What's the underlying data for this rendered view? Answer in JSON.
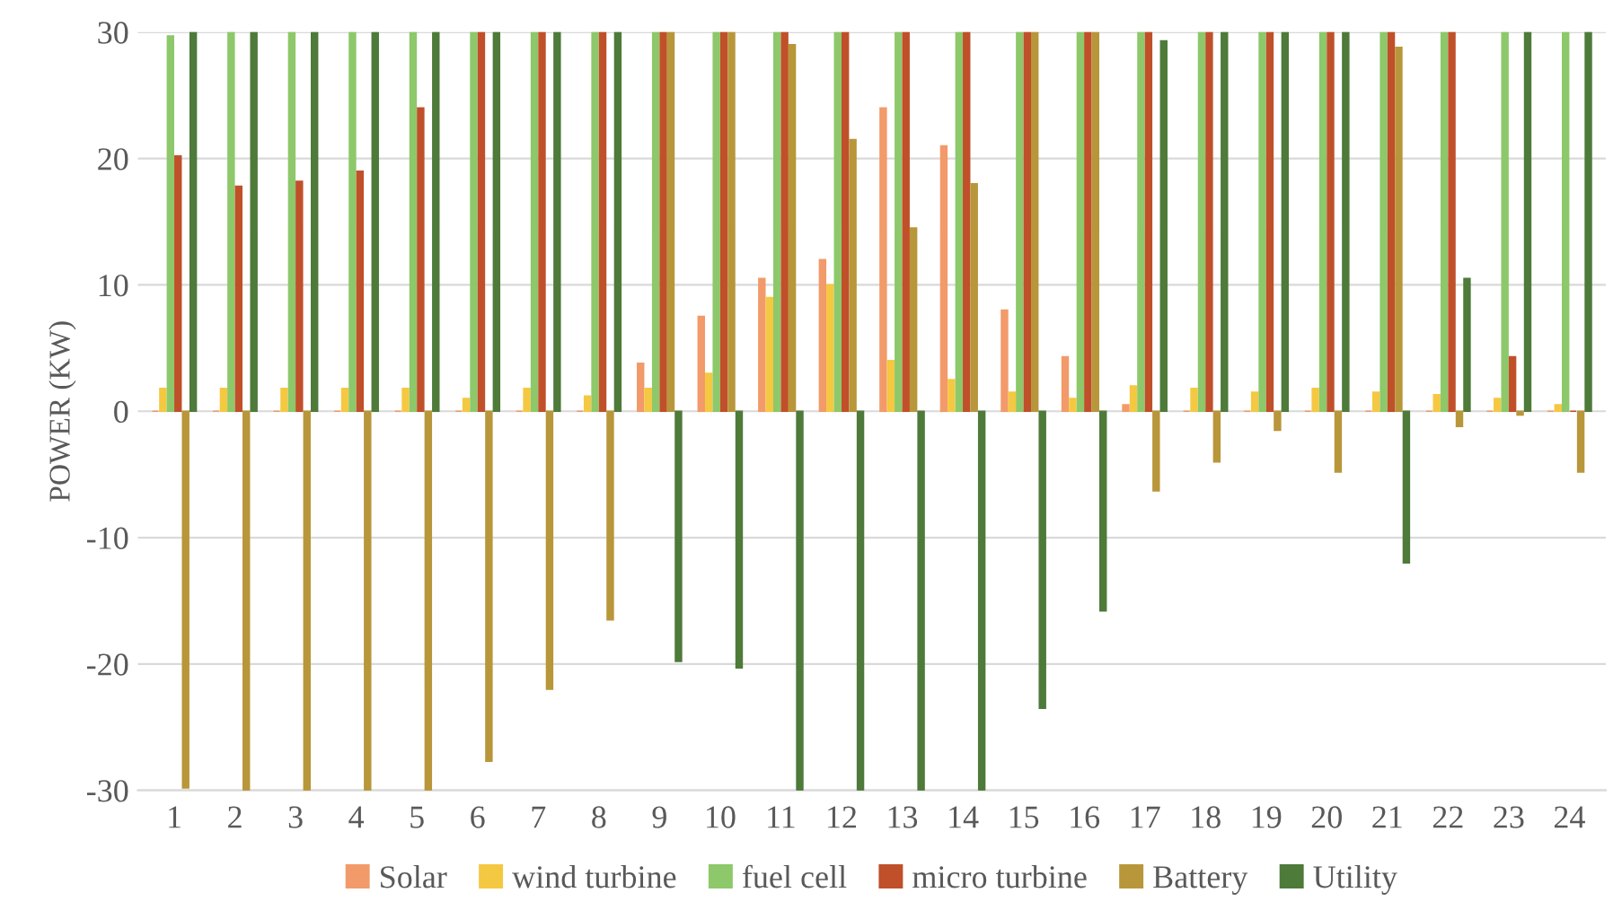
{
  "chart_data": {
    "type": "bar",
    "ylabel": "POWER (KW)",
    "categories": [
      "1",
      "2",
      "3",
      "4",
      "5",
      "6",
      "7",
      "8",
      "9",
      "10",
      "11",
      "12",
      "13",
      "14",
      "15",
      "16",
      "17",
      "18",
      "19",
      "20",
      "21",
      "22",
      "23",
      "24"
    ],
    "series": [
      {
        "name": "Solar",
        "color": "#f29a6a",
        "values": [
          0,
          0,
          0,
          0,
          0,
          0,
          0,
          0,
          3.8,
          7.5,
          10.5,
          12,
          24,
          21,
          8,
          4.3,
          0.5,
          0,
          0,
          0,
          0,
          0,
          0,
          0
        ]
      },
      {
        "name": "wind turbine",
        "color": "#f5c842",
        "values": [
          1.8,
          1.8,
          1.8,
          1.8,
          1.8,
          1,
          1.8,
          1.2,
          1.8,
          3,
          9,
          10,
          4,
          2.5,
          1.5,
          1,
          2,
          1.8,
          1.5,
          1.8,
          1.5,
          1.3,
          1,
          0.5
        ]
      },
      {
        "name": "fuel cell",
        "color": "#8dc86a",
        "values": [
          29.7,
          30,
          30,
          30,
          30,
          30,
          30,
          30,
          30,
          30,
          30,
          30,
          30,
          30,
          30,
          30,
          30,
          30,
          30,
          30,
          30,
          30,
          30,
          30
        ]
      },
      {
        "name": "micro turbine",
        "color": "#c0502a",
        "values": [
          20.2,
          17.8,
          18.2,
          19,
          24,
          30,
          30,
          30,
          30,
          30,
          30,
          30,
          30,
          30,
          30,
          30,
          30,
          30,
          30,
          30,
          30,
          30,
          4.3,
          0
        ]
      },
      {
        "name": "Battery",
        "color": "#b8963a",
        "values": [
          -29.8,
          -30,
          -30,
          -30,
          -30,
          -27.7,
          -22,
          -16.5,
          30,
          30,
          29,
          21.5,
          14.5,
          18,
          30,
          30,
          -6.3,
          -4,
          -1.5,
          -4.8,
          28.8,
          -1.2,
          -0.3,
          -4.8
        ]
      },
      {
        "name": "Utility",
        "color": "#4e7a3a",
        "values": [
          30,
          30,
          30,
          30,
          30,
          30,
          30,
          30,
          -19.8,
          -20.3,
          -30,
          -30,
          -30,
          -30,
          -23.5,
          -15.8,
          29.3,
          30,
          30,
          30,
          -12,
          10.5,
          30,
          30
        ]
      }
    ],
    "ylim": [
      -30,
      30
    ],
    "yticks": [
      -30,
      -20,
      -10,
      0,
      10,
      20,
      30
    ],
    "grid": "y",
    "legend": "bottom"
  }
}
